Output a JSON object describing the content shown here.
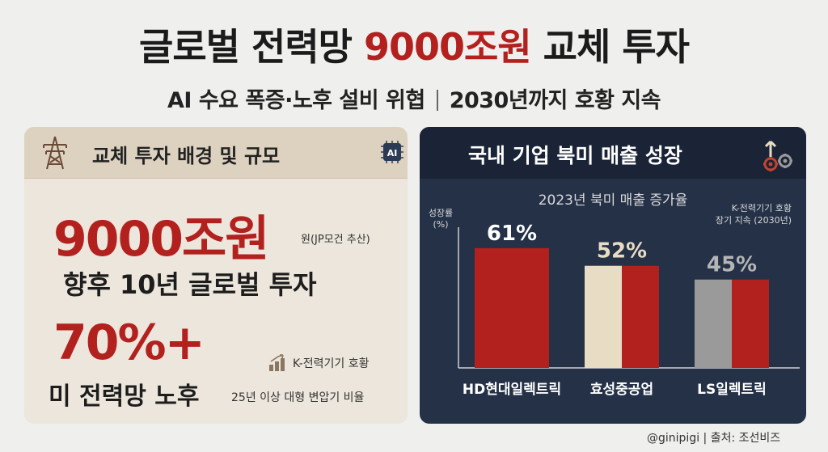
{
  "header": {
    "title_part1": "글로벌 전력망 ",
    "title_highlight": "9000조원",
    "title_part2": " 교체 투자",
    "subtitle_left": "AI 수요 폭증·노후 설비 위협",
    "subtitle_right": "2030년까지 호황 지속"
  },
  "left_panel": {
    "heading": "교체 투자 배경 및 규모",
    "ai_chip_label": "AI",
    "big_value": "9000조원",
    "big_value_note": "원(JP모건 추산)",
    "big_caption": "향후 10년 글로벌 투자",
    "pct_value": "70%+",
    "boom_note": "K-전력기기 호황",
    "pct_caption": "미 전력망 노후",
    "pct_note": "25년 이상 대형 변압기 비율"
  },
  "right_panel": {
    "heading": "국내 기업 북미 매출 성장"
  },
  "chart_data": {
    "type": "bar",
    "title": "2023년 북미 매출 증가율",
    "ylabel": "성장률 (%)",
    "categories": [
      "HD현대일렉트릭",
      "효성중공업",
      "LS일렉트릭"
    ],
    "values": [
      61,
      52,
      45
    ],
    "value_labels": [
      "61%",
      "52%",
      "45%"
    ],
    "annotation": "K-전력기기 호황 장기 지속 (2030년)",
    "colors": {
      "bar_red": "#b3211f",
      "bar_beige": "#e9dcc4",
      "bar_gray": "#9a9a9a",
      "label_white": "#ffffff",
      "label_beige": "#e9dcc4",
      "label_gray": "#b5b5b5"
    }
  },
  "footer": {
    "credit": "@ginipigi | 출처: 조선비즈"
  },
  "colors": {
    "accent_red": "#b3211f",
    "left_bg": "#ece6dc",
    "right_bg": "#243147"
  }
}
